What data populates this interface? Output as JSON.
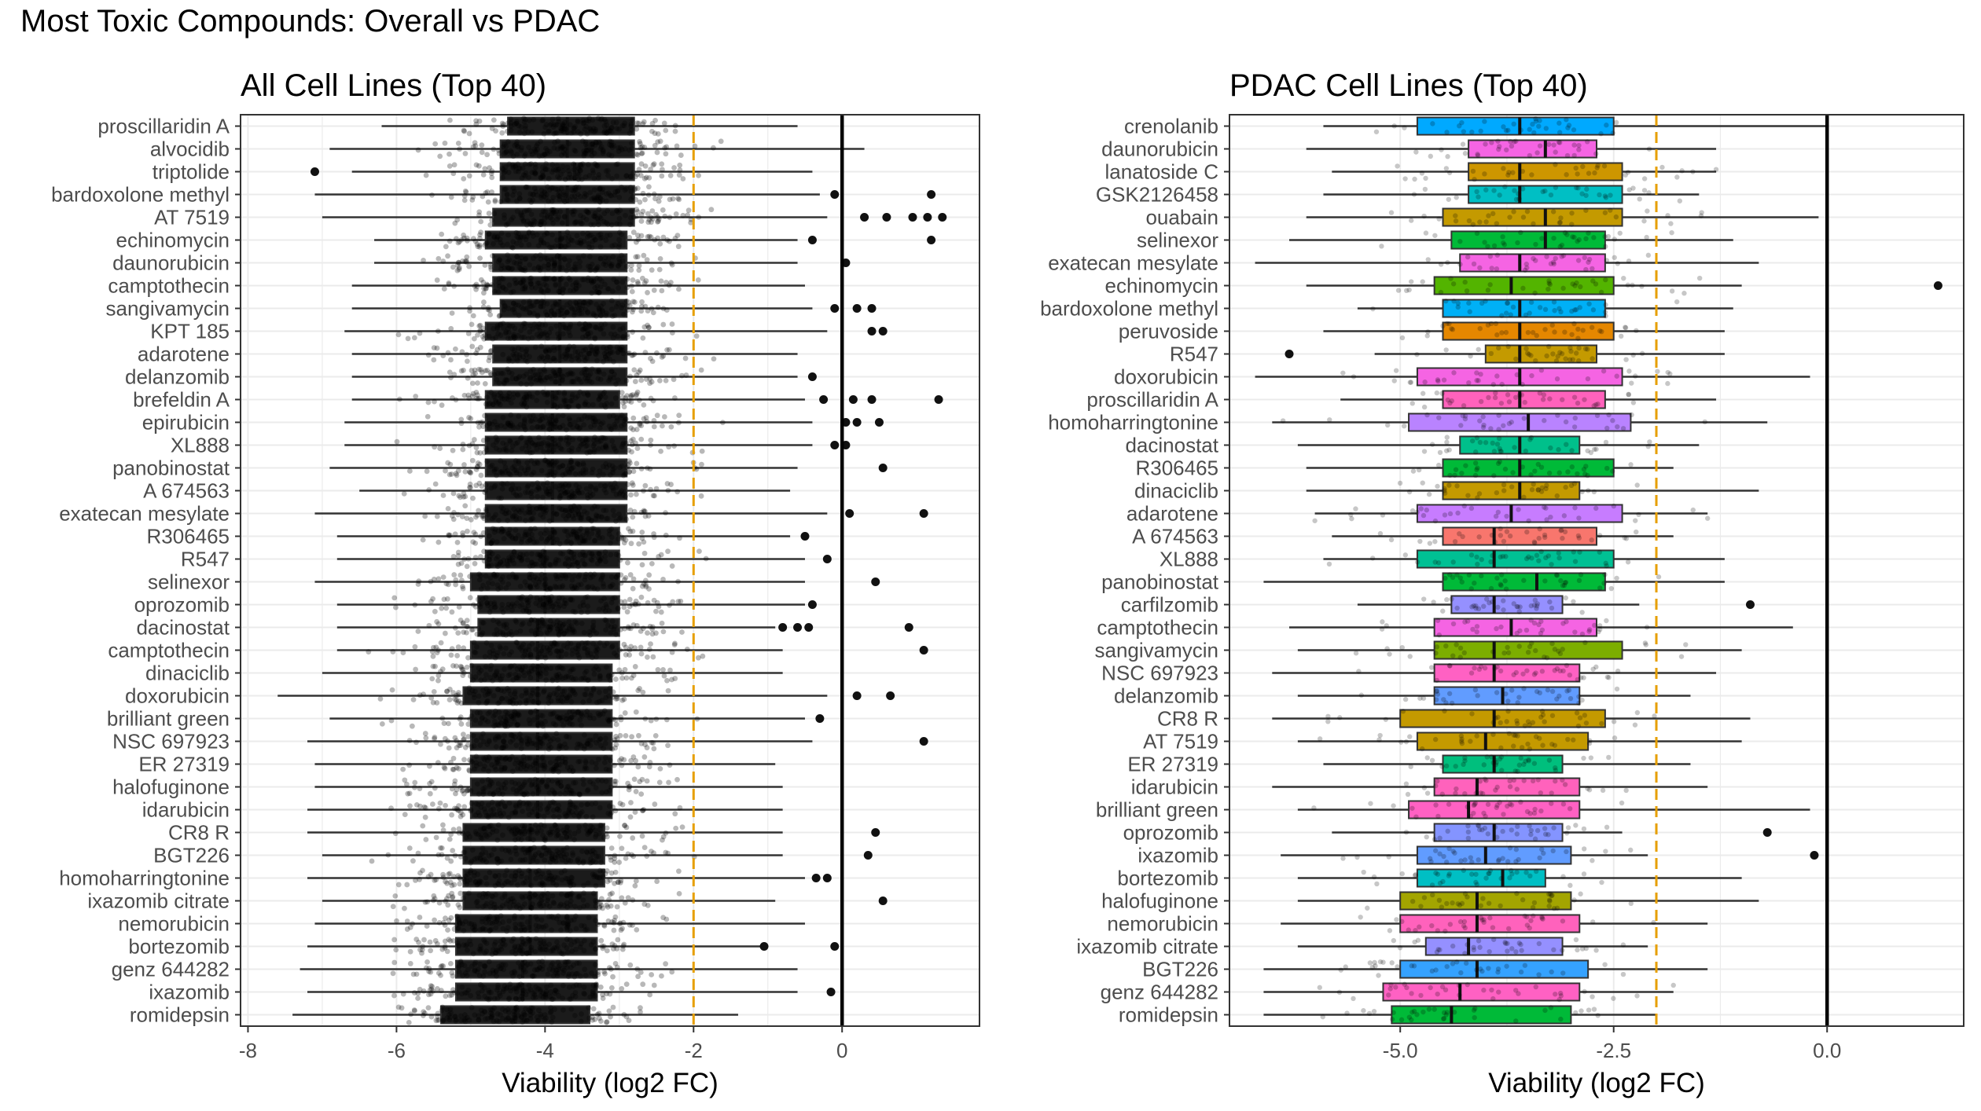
{
  "title": "Most Toxic Compounds: Overall vs PDAC",
  "colors": {
    "threshold": "#E69F00",
    "zero_line": "#000000",
    "panel_border": "#333333",
    "grid": "#EBEBEB",
    "whisker": "#333333"
  },
  "chart_data": [
    {
      "type": "boxplot",
      "orientation": "horizontal",
      "title": "All Cell Lines (Top 40)",
      "xlabel": "Viability (log2 FC)",
      "ylabel": "",
      "xlim": [
        -8.1,
        1.85
      ],
      "xticks": [
        -8,
        -6,
        -4,
        -2,
        0
      ],
      "tick_labels": [
        "-8",
        "-6",
        "-4",
        "-2",
        "0"
      ],
      "threshold_line": -2,
      "zero_line": 0,
      "grid": true,
      "legend": "none",
      "categories": [
        "proscillaridin A",
        "alvocidib",
        "triptolide",
        "bardoxolone methyl",
        "AT 7519",
        "echinomycin",
        "daunorubicin",
        "camptothecin",
        "sangivamycin",
        "KPT 185",
        "adarotene",
        "delanzomib",
        "brefeldin A",
        "epirubicin",
        "XL888",
        "panobinostat",
        "A 674563",
        "exatecan mesylate",
        "R306465",
        "R547",
        "selinexor",
        "oprozomib",
        "dacinostat",
        "camptothecin",
        "dinaciclib",
        "doxorubicin",
        "brilliant green",
        "NSC 697923",
        "ER 27319",
        "halofuginone",
        "idarubicin",
        "CR8  R",
        "BGT226",
        "homoharringtonine",
        "ixazomib citrate",
        "nemorubicin",
        "bortezomib",
        "genz 644282",
        "ixazomib",
        "romidepsin"
      ],
      "series": [
        {
          "q1": -4.5,
          "med": -3.7,
          "q3": -2.8,
          "wlo": -6.2,
          "whi": -0.6,
          "outliers": []
        },
        {
          "q1": -4.6,
          "med": -3.7,
          "q3": -2.8,
          "wlo": -6.9,
          "whi": 0.3,
          "outliers": []
        },
        {
          "q1": -4.6,
          "med": -3.6,
          "q3": -2.8,
          "wlo": -6.6,
          "whi": -0.4,
          "outliers": [
            -7.1
          ]
        },
        {
          "q1": -4.6,
          "med": -3.7,
          "q3": -2.8,
          "wlo": -7.1,
          "whi": -0.3,
          "outliers": [
            -0.1,
            1.2
          ]
        },
        {
          "q1": -4.7,
          "med": -3.7,
          "q3": -2.8,
          "wlo": -7.0,
          "whi": -0.2,
          "outliers": [
            0.3,
            0.6,
            0.95,
            1.15,
            1.35
          ]
        },
        {
          "q1": -4.8,
          "med": -3.8,
          "q3": -2.9,
          "wlo": -6.3,
          "whi": -0.6,
          "outliers": [
            -0.4,
            1.2
          ]
        },
        {
          "q1": -4.7,
          "med": -3.8,
          "q3": -2.9,
          "wlo": -6.3,
          "whi": -0.6,
          "outliers": [
            0.05
          ]
        },
        {
          "q1": -4.7,
          "med": -3.8,
          "q3": -2.9,
          "wlo": -6.6,
          "whi": -0.5,
          "outliers": []
        },
        {
          "q1": -4.6,
          "med": -3.8,
          "q3": -2.9,
          "wlo": -6.6,
          "whi": -0.4,
          "outliers": [
            -0.1,
            0.2,
            0.4
          ]
        },
        {
          "q1": -4.8,
          "med": -3.8,
          "q3": -2.9,
          "wlo": -6.7,
          "whi": -0.2,
          "outliers": [
            0.4,
            0.55
          ]
        },
        {
          "q1": -4.7,
          "med": -3.8,
          "q3": -2.9,
          "wlo": -6.6,
          "whi": -0.6,
          "outliers": []
        },
        {
          "q1": -4.7,
          "med": -3.8,
          "q3": -2.9,
          "wlo": -6.6,
          "whi": -0.6,
          "outliers": [
            -0.4
          ]
        },
        {
          "q1": -4.8,
          "med": -3.9,
          "q3": -3.0,
          "wlo": -6.6,
          "whi": -0.5,
          "outliers": [
            -0.25,
            0.15,
            0.4,
            1.3
          ]
        },
        {
          "q1": -4.8,
          "med": -3.9,
          "q3": -2.9,
          "wlo": -6.7,
          "whi": -0.4,
          "outliers": [
            0.05,
            0.2,
            0.5
          ]
        },
        {
          "q1": -4.8,
          "med": -3.9,
          "q3": -2.9,
          "wlo": -6.7,
          "whi": -0.4,
          "outliers": [
            -0.1,
            0.05
          ]
        },
        {
          "q1": -4.8,
          "med": -3.9,
          "q3": -2.9,
          "wlo": -6.9,
          "whi": -0.6,
          "outliers": [
            0.55
          ]
        },
        {
          "q1": -4.8,
          "med": -3.9,
          "q3": -2.9,
          "wlo": -6.5,
          "whi": -0.7,
          "outliers": []
        },
        {
          "q1": -4.8,
          "med": -3.9,
          "q3": -2.9,
          "wlo": -7.1,
          "whi": -0.2,
          "outliers": [
            0.1,
            1.1
          ]
        },
        {
          "q1": -4.8,
          "med": -3.9,
          "q3": -3.0,
          "wlo": -6.8,
          "whi": -0.7,
          "outliers": [
            -0.5
          ]
        },
        {
          "q1": -4.8,
          "med": -4.0,
          "q3": -3.0,
          "wlo": -6.8,
          "whi": -0.5,
          "outliers": [
            -0.2
          ]
        },
        {
          "q1": -5.0,
          "med": -4.0,
          "q3": -3.0,
          "wlo": -7.1,
          "whi": -0.5,
          "outliers": [
            0.45
          ]
        },
        {
          "q1": -4.9,
          "med": -4.0,
          "q3": -3.0,
          "wlo": -6.8,
          "whi": -0.5,
          "outliers": [
            -0.4
          ]
        },
        {
          "q1": -4.9,
          "med": -4.1,
          "q3": -3.0,
          "wlo": -6.8,
          "whi": -0.9,
          "outliers": [
            -0.8,
            -0.6,
            -0.45,
            0.9
          ]
        },
        {
          "q1": -5.0,
          "med": -4.1,
          "q3": -3.0,
          "wlo": -6.8,
          "whi": -0.8,
          "outliers": [
            1.1
          ]
        },
        {
          "q1": -5.0,
          "med": -4.1,
          "q3": -3.1,
          "wlo": -7.0,
          "whi": -0.8,
          "outliers": []
        },
        {
          "q1": -5.1,
          "med": -4.1,
          "q3": -3.1,
          "wlo": -7.6,
          "whi": -0.2,
          "outliers": [
            0.2,
            0.65
          ]
        },
        {
          "q1": -5.0,
          "med": -4.1,
          "q3": -3.1,
          "wlo": -6.9,
          "whi": -0.5,
          "outliers": [
            -0.3
          ]
        },
        {
          "q1": -5.0,
          "med": -4.1,
          "q3": -3.1,
          "wlo": -7.2,
          "whi": -0.4,
          "outliers": [
            1.1
          ]
        },
        {
          "q1": -5.0,
          "med": -4.1,
          "q3": -3.1,
          "wlo": -7.1,
          "whi": -0.9,
          "outliers": []
        },
        {
          "q1": -5.0,
          "med": -4.1,
          "q3": -3.1,
          "wlo": -7.1,
          "whi": -0.8,
          "outliers": []
        },
        {
          "q1": -5.0,
          "med": -4.1,
          "q3": -3.1,
          "wlo": -7.2,
          "whi": -0.8,
          "outliers": []
        },
        {
          "q1": -5.1,
          "med": -4.2,
          "q3": -3.2,
          "wlo": -7.2,
          "whi": -0.8,
          "outliers": [
            0.45
          ]
        },
        {
          "q1": -5.1,
          "med": -4.2,
          "q3": -3.2,
          "wlo": -7.0,
          "whi": -0.8,
          "outliers": [
            0.35
          ]
        },
        {
          "q1": -5.1,
          "med": -4.2,
          "q3": -3.2,
          "wlo": -7.2,
          "whi": -0.5,
          "outliers": [
            -0.35,
            -0.2
          ]
        },
        {
          "q1": -5.1,
          "med": -4.2,
          "q3": -3.3,
          "wlo": -7.0,
          "whi": -0.9,
          "outliers": [
            0.55
          ]
        },
        {
          "q1": -5.2,
          "med": -4.2,
          "q3": -3.3,
          "wlo": -7.1,
          "whi": -0.5,
          "outliers": []
        },
        {
          "q1": -5.2,
          "med": -4.2,
          "q3": -3.3,
          "wlo": -7.2,
          "whi": -1.0,
          "outliers": [
            -1.05,
            -0.1
          ]
        },
        {
          "q1": -5.2,
          "med": -4.3,
          "q3": -3.3,
          "wlo": -7.3,
          "whi": -0.6,
          "outliers": []
        },
        {
          "q1": -5.2,
          "med": -4.3,
          "q3": -3.3,
          "wlo": -7.2,
          "whi": -0.6,
          "outliers": [
            -0.15
          ]
        },
        {
          "q1": -5.4,
          "med": -4.4,
          "q3": -3.4,
          "wlo": -7.4,
          "whi": -1.4,
          "outliers": []
        }
      ]
    },
    {
      "type": "boxplot",
      "orientation": "horizontal",
      "title": "PDAC Cell Lines (Top 40)",
      "xlabel": "Viability (log2 FC)",
      "ylabel": "",
      "xlim": [
        -7.0,
        1.6
      ],
      "xticks": [
        -5.0,
        -2.5,
        0.0
      ],
      "tick_labels": [
        "-5.0",
        "-2.5",
        "0.0"
      ],
      "threshold_line": -2,
      "zero_line": 0,
      "grid": true,
      "legend": "none",
      "categories": [
        "crenolanib",
        "daunorubicin",
        "lanatoside C",
        "GSK2126458",
        "ouabain",
        "selinexor",
        "exatecan mesylate",
        "echinomycin",
        "bardoxolone methyl",
        "peruvoside",
        "R547",
        "doxorubicin",
        "proscillaridin A",
        "homoharringtonine",
        "dacinostat",
        "R306465",
        "dinaciclib",
        "adarotene",
        "A 674563",
        "XL888",
        "panobinostat",
        "carfilzomib",
        "camptothecin",
        "sangivamycin",
        "NSC 697923",
        "delanzomib",
        "CR8  R",
        "AT 7519",
        "ER 27319",
        "idarubicin",
        "brilliant green",
        "oprozomib",
        "ixazomib",
        "bortezomib",
        "halofuginone",
        "nemorubicin",
        "ixazomib citrate",
        "BGT226",
        "genz 644282",
        "romidepsin"
      ],
      "series": [
        {
          "fill": "#00A9FF",
          "q1": -4.8,
          "med": -3.6,
          "q3": -2.5,
          "wlo": -5.9,
          "whi": 0.0,
          "outliers": []
        },
        {
          "fill": "#F564E3",
          "q1": -4.2,
          "med": -3.3,
          "q3": -2.7,
          "wlo": -6.1,
          "whi": -1.3,
          "outliers": []
        },
        {
          "fill": "#CD9600",
          "q1": -4.2,
          "med": -3.6,
          "q3": -2.4,
          "wlo": -5.8,
          "whi": -1.3,
          "outliers": []
        },
        {
          "fill": "#00BFC4",
          "q1": -4.2,
          "med": -3.6,
          "q3": -2.4,
          "wlo": -5.9,
          "whi": -1.5,
          "outliers": []
        },
        {
          "fill": "#C49A00",
          "q1": -4.5,
          "med": -3.3,
          "q3": -2.4,
          "wlo": -6.1,
          "whi": -0.1,
          "outliers": []
        },
        {
          "fill": "#00BA38",
          "q1": -4.4,
          "med": -3.3,
          "q3": -2.6,
          "wlo": -6.3,
          "whi": -1.1,
          "outliers": []
        },
        {
          "fill": "#F564E3",
          "q1": -4.3,
          "med": -3.6,
          "q3": -2.6,
          "wlo": -6.7,
          "whi": -0.8,
          "outliers": []
        },
        {
          "fill": "#53B400",
          "q1": -4.6,
          "med": -3.7,
          "q3": -2.5,
          "wlo": -6.1,
          "whi": -1.0,
          "outliers": [
            1.3
          ]
        },
        {
          "fill": "#00B0F6",
          "q1": -4.5,
          "med": -3.6,
          "q3": -2.6,
          "wlo": -5.5,
          "whi": -1.1,
          "outliers": []
        },
        {
          "fill": "#E58700",
          "q1": -4.5,
          "med": -3.6,
          "q3": -2.5,
          "wlo": -5.9,
          "whi": -1.2,
          "outliers": []
        },
        {
          "fill": "#C49A00",
          "q1": -4.0,
          "med": -3.6,
          "q3": -2.7,
          "wlo": -5.3,
          "whi": -1.2,
          "outliers": [
            -6.3
          ]
        },
        {
          "fill": "#F564E3",
          "q1": -4.8,
          "med": -3.6,
          "q3": -2.4,
          "wlo": -6.7,
          "whi": -0.2,
          "outliers": []
        },
        {
          "fill": "#FF62BC",
          "q1": -4.5,
          "med": -3.6,
          "q3": -2.6,
          "wlo": -5.7,
          "whi": -1.3,
          "outliers": []
        },
        {
          "fill": "#B983FF",
          "q1": -4.9,
          "med": -3.5,
          "q3": -2.3,
          "wlo": -6.5,
          "whi": -0.7,
          "outliers": []
        },
        {
          "fill": "#00C08B",
          "q1": -4.3,
          "med": -3.6,
          "q3": -2.9,
          "wlo": -6.2,
          "whi": -1.5,
          "outliers": []
        },
        {
          "fill": "#00BA38",
          "q1": -4.5,
          "med": -3.6,
          "q3": -2.5,
          "wlo": -6.1,
          "whi": -1.8,
          "outliers": []
        },
        {
          "fill": "#C49A00",
          "q1": -4.5,
          "med": -3.6,
          "q3": -2.9,
          "wlo": -6.1,
          "whi": -0.8,
          "outliers": []
        },
        {
          "fill": "#C77CFF",
          "q1": -4.8,
          "med": -3.7,
          "q3": -2.4,
          "wlo": -6.0,
          "whi": -1.4,
          "outliers": []
        },
        {
          "fill": "#F8766D",
          "q1": -4.5,
          "med": -3.9,
          "q3": -2.7,
          "wlo": -5.8,
          "whi": -1.8,
          "outliers": []
        },
        {
          "fill": "#00C094",
          "q1": -4.8,
          "med": -3.9,
          "q3": -2.5,
          "wlo": -5.9,
          "whi": -1.2,
          "outliers": []
        },
        {
          "fill": "#00BA38",
          "q1": -4.5,
          "med": -3.4,
          "q3": -2.6,
          "wlo": -6.6,
          "whi": -1.2,
          "outliers": []
        },
        {
          "fill": "#9590FF",
          "q1": -4.4,
          "med": -3.9,
          "q3": -3.1,
          "wlo": -5.5,
          "whi": -2.2,
          "outliers": [
            -0.9
          ]
        },
        {
          "fill": "#F564E3",
          "q1": -4.6,
          "med": -3.7,
          "q3": -2.7,
          "wlo": -6.3,
          "whi": -0.4,
          "outliers": []
        },
        {
          "fill": "#7CAE00",
          "q1": -4.6,
          "med": -3.9,
          "q3": -2.4,
          "wlo": -6.2,
          "whi": -1.0,
          "outliers": []
        },
        {
          "fill": "#FF61C3",
          "q1": -4.6,
          "med": -3.9,
          "q3": -2.9,
          "wlo": -6.5,
          "whi": -1.3,
          "outliers": []
        },
        {
          "fill": "#619CFF",
          "q1": -4.6,
          "med": -3.8,
          "q3": -2.9,
          "wlo": -6.2,
          "whi": -1.6,
          "outliers": []
        },
        {
          "fill": "#C49A00",
          "q1": -5.0,
          "med": -3.9,
          "q3": -2.6,
          "wlo": -6.5,
          "whi": -0.9,
          "outliers": []
        },
        {
          "fill": "#C49A00",
          "q1": -4.8,
          "med": -4.0,
          "q3": -2.8,
          "wlo": -6.2,
          "whi": -1.0,
          "outliers": []
        },
        {
          "fill": "#00BF7D",
          "q1": -4.5,
          "med": -3.9,
          "q3": -3.1,
          "wlo": -5.9,
          "whi": -1.6,
          "outliers": []
        },
        {
          "fill": "#FF62BC",
          "q1": -4.6,
          "med": -4.1,
          "q3": -2.9,
          "wlo": -6.5,
          "whi": -1.4,
          "outliers": []
        },
        {
          "fill": "#FF61C3",
          "q1": -4.9,
          "med": -4.2,
          "q3": -2.9,
          "wlo": -6.2,
          "whi": -0.2,
          "outliers": []
        },
        {
          "fill": "#8494FF",
          "q1": -4.6,
          "med": -3.9,
          "q3": -3.1,
          "wlo": -5.8,
          "whi": -2.4,
          "outliers": [
            -0.7
          ]
        },
        {
          "fill": "#619CFF",
          "q1": -4.8,
          "med": -4.0,
          "q3": -3.0,
          "wlo": -6.4,
          "whi": -2.1,
          "outliers": [
            -0.15
          ]
        },
        {
          "fill": "#00BFC4",
          "q1": -4.8,
          "med": -3.8,
          "q3": -3.3,
          "wlo": -6.2,
          "whi": -1.0,
          "outliers": []
        },
        {
          "fill": "#A3A500",
          "q1": -5.0,
          "med": -4.1,
          "q3": -3.0,
          "wlo": -6.2,
          "whi": -0.8,
          "outliers": []
        },
        {
          "fill": "#FF62BC",
          "q1": -5.0,
          "med": -4.1,
          "q3": -2.9,
          "wlo": -6.4,
          "whi": -1.4,
          "outliers": []
        },
        {
          "fill": "#9590FF",
          "q1": -4.7,
          "med": -4.2,
          "q3": -3.1,
          "wlo": -6.2,
          "whi": -2.1,
          "outliers": []
        },
        {
          "fill": "#35A2FF",
          "q1": -5.0,
          "med": -4.1,
          "q3": -2.8,
          "wlo": -6.6,
          "whi": -1.4,
          "outliers": []
        },
        {
          "fill": "#FF61C3",
          "q1": -5.2,
          "med": -4.3,
          "q3": -2.9,
          "wlo": -6.6,
          "whi": -1.8,
          "outliers": []
        },
        {
          "fill": "#00BA38",
          "q1": -5.1,
          "med": -4.4,
          "q3": -3.0,
          "wlo": -6.6,
          "whi": -2.0,
          "outliers": []
        }
      ]
    }
  ]
}
